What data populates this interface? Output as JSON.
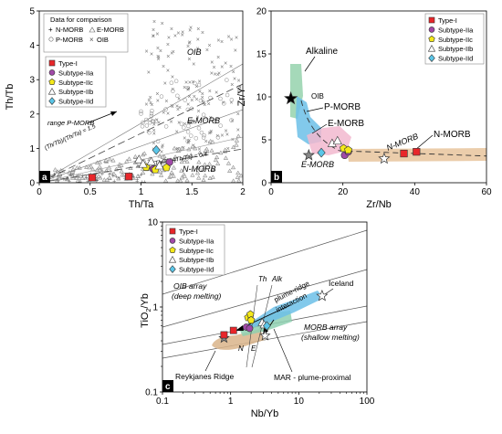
{
  "colors": {
    "type1": "#e8262a",
    "IIa": "#a14aa8",
    "IIc": "#f4e81a",
    "IIb": "#ffffff",
    "IId": "#5bc6e8",
    "alkaline": "#8fcfa8",
    "pmorb": "#6cc0e8",
    "emorb": "#f2b8cf",
    "nmorb": "#e8c49c",
    "reykjanes": "#d9b48a",
    "mar": "#8ed0b0",
    "plume": "#6cc0e8"
  },
  "legend_sets": {
    "samples": [
      "Type-I",
      "Subtype-IIa",
      "Subtype-IIc",
      "Subtype-IIb",
      "Subtype-IId"
    ],
    "comparison": {
      "title": "Data for comparison",
      "items": [
        "N-MORB",
        "E-MORB",
        "P-MORB",
        "OIB"
      ]
    }
  },
  "panel_a": {
    "letter": "a",
    "annotations": {
      "oib": "OIB",
      "emorb": "E-MORB",
      "nmorb": "N-MORB",
      "range": "range P-MORB",
      "ratio15": "(Th/Tb)/(Th/Ta) = 1.5",
      "ratio04": "(Th/Tb)/(Th/Ta) = 0.4"
    }
  },
  "panel_b": {
    "letter": "b",
    "annotations": {
      "alkaline": "Alkaline",
      "oib": "OIB",
      "pmorb": "P-MORB",
      "emorb": "E-MORB",
      "emorb2": "E-MORB",
      "nmorb": "N-MORB",
      "nmorb2": "N-MORB"
    }
  },
  "panel_c": {
    "letter": "c",
    "ylabel_main": "TiO",
    "ylabel_sub": "2",
    "ylabel_tail": "/Yb",
    "annotations": {
      "th": "Th",
      "alk": "Alk",
      "oib_array": "OIB array",
      "deep": "(deep melting)",
      "plume1": "plume-ridge",
      "plume2": "interaction",
      "iceland": "Iceland",
      "morb_array": "MORB array",
      "shallow": "(shallow melting)",
      "n": "N",
      "e": "E",
      "reykjanes": "Reykjanes Ridge",
      "mar": "MAR - plume-proximal"
    }
  },
  "chart_data": [
    {
      "type": "scatter",
      "xlabel": "Th/Ta",
      "ylabel": "Th/Tb",
      "xlim": [
        0,
        2
      ],
      "ylim": [
        0,
        5
      ],
      "xticks": [
        "0",
        "0.5",
        "1",
        "1.5",
        "2"
      ],
      "yticks": [
        "0",
        "1",
        "2",
        "3",
        "4",
        "5"
      ],
      "series": [
        {
          "name": "Type-I",
          "points": [
            [
              0.52,
              0.15
            ],
            [
              0.88,
              0.18
            ]
          ]
        },
        {
          "name": "Subtype-IIa",
          "points": [
            [
              1.28,
              0.6
            ],
            [
              1.12,
              0.4
            ]
          ]
        },
        {
          "name": "Subtype-IIc",
          "points": [
            [
              1.05,
              0.45
            ],
            [
              1.25,
              0.44
            ],
            [
              1.14,
              0.38
            ]
          ]
        },
        {
          "name": "Subtype-IIb",
          "points": [
            [
              0.98,
              0.68
            ],
            [
              1.1,
              0.62
            ],
            [
              1.02,
              0.55
            ],
            [
              1.18,
              0.5
            ]
          ]
        },
        {
          "name": "Subtype-IId",
          "points": [
            [
              1.15,
              0.95
            ]
          ]
        }
      ],
      "grid": false,
      "legend": "top-left"
    },
    {
      "type": "scatter",
      "xlabel": "Zr/Nb",
      "ylabel": "Zr/Y",
      "xlim": [
        0,
        60
      ],
      "ylim": [
        0,
        20
      ],
      "xticks": [
        "0",
        "20",
        "40",
        "60"
      ],
      "yticks": [
        "0",
        "5",
        "10",
        "15",
        "20"
      ],
      "series": [
        {
          "name": "Type-I",
          "points": [
            [
              37,
              3.4
            ],
            [
              40.5,
              3.6
            ]
          ]
        },
        {
          "name": "Subtype-IIa",
          "points": [
            [
              20.5,
              3.2
            ],
            [
              21.5,
              3.6
            ]
          ]
        },
        {
          "name": "Subtype-IIc",
          "points": [
            [
              20.2,
              4.0
            ],
            [
              21.5,
              3.8
            ]
          ]
        },
        {
          "name": "Subtype-IIb",
          "points": [
            [
              17,
              4.6
            ],
            [
              18.5,
              4.9
            ]
          ]
        },
        {
          "name": "Subtype-IId",
          "points": [
            [
              14,
              3.5
            ]
          ]
        }
      ],
      "grid": false,
      "legend": "top-right"
    },
    {
      "type": "scatter",
      "scale": "log-log",
      "xlabel": "Nb/Yb",
      "ylabel": "TiO2/Yb",
      "xlim": [
        0.1,
        100
      ],
      "ylim": [
        0.1,
        10
      ],
      "xticks": [
        "0.1",
        "1",
        "10",
        "100"
      ],
      "yticks": [
        "0.1",
        "1",
        "10"
      ],
      "series": [
        {
          "name": "Type-I",
          "points": [
            [
              0.8,
              0.47
            ],
            [
              1.1,
              0.53
            ]
          ]
        },
        {
          "name": "Subtype-IIa",
          "points": [
            [
              1.7,
              0.58
            ],
            [
              1.9,
              0.56
            ]
          ]
        },
        {
          "name": "Subtype-IIc",
          "points": [
            [
              1.8,
              0.75
            ],
            [
              1.95,
              0.82
            ],
            [
              2.0,
              0.7
            ]
          ]
        },
        {
          "name": "Subtype-IIb",
          "points": [
            [
              2.9,
              0.66
            ],
            [
              3.1,
              0.62
            ]
          ]
        },
        {
          "name": "Subtype-IId",
          "points": [
            [
              3.4,
              0.6
            ]
          ]
        }
      ],
      "grid": false,
      "legend": "top-left"
    }
  ]
}
